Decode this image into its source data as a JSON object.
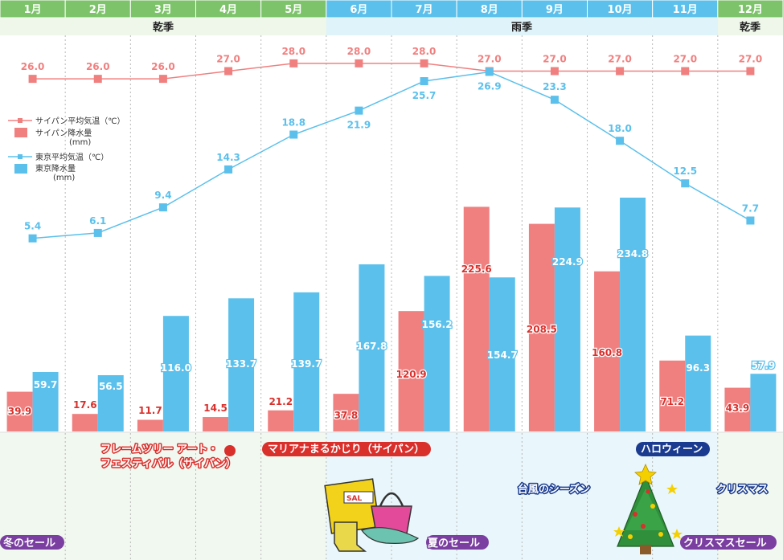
{
  "chart_data": {
    "type": "bar+line",
    "categories": [
      "1月",
      "2月",
      "3月",
      "4月",
      "5月",
      "6月",
      "7月",
      "8月",
      "9月",
      "10月",
      "11月",
      "12月"
    ],
    "seasons": [
      {
        "label": "乾季",
        "months": [
          "1月",
          "2月",
          "3月",
          "4月",
          "5月"
        ]
      },
      {
        "label": "雨季",
        "months": [
          "6月",
          "7月",
          "8月",
          "9月",
          "10月",
          "11月"
        ]
      },
      {
        "label": "乾季",
        "months": [
          "12月"
        ]
      }
    ],
    "series": [
      {
        "name": "サイパン平均気温（℃）",
        "kind": "line",
        "color": "#f08080",
        "values": [
          26.0,
          26.0,
          26.0,
          27.0,
          28.0,
          28.0,
          28.0,
          27.0,
          27.0,
          27.0,
          27.0,
          27.0
        ]
      },
      {
        "name": "サイパン降水量",
        "unit": "(mm)",
        "kind": "bar",
        "color": "#f08080",
        "values": [
          39.9,
          17.6,
          11.7,
          14.5,
          21.2,
          37.8,
          120.9,
          225.6,
          208.5,
          160.8,
          71.2,
          43.9
        ]
      },
      {
        "name": "東京平均気温（℃）",
        "kind": "line",
        "color": "#5bc0eb",
        "values": [
          5.4,
          6.1,
          9.4,
          14.3,
          18.8,
          21.9,
          25.7,
          26.9,
          23.3,
          18.0,
          12.5,
          7.7
        ]
      },
      {
        "name": "東京降水量",
        "unit": "(mm)",
        "kind": "bar",
        "color": "#5bc0eb",
        "values": [
          59.7,
          56.5,
          116.0,
          133.7,
          139.7,
          167.8,
          156.2,
          154.7,
          224.9,
          234.8,
          96.3,
          57.9
        ]
      }
    ],
    "events": [
      {
        "text": "冬のセール",
        "color": "#7a3fa0"
      },
      {
        "text": "フレームツリー アート・",
        "color": "#d9302c"
      },
      {
        "text": "フェスティバル（サイパン）",
        "color": "#d9302c"
      },
      {
        "text": "マリアナまるかじり（サイパン）",
        "color": "#d9302c"
      },
      {
        "text": "夏のセール",
        "color": "#7a3fa0"
      },
      {
        "text": "台風のシーズン",
        "color": "#1a3b8f"
      },
      {
        "text": "ハロウィーン",
        "color": "#1a3b8f"
      },
      {
        "text": "クリスマス",
        "color": "#1a3b8f"
      },
      {
        "text": "クリスマスセール",
        "color": "#7a3fa0"
      }
    ],
    "illustrations": [
      "shopping-bags-icon",
      "christmas-tree-icon"
    ]
  }
}
